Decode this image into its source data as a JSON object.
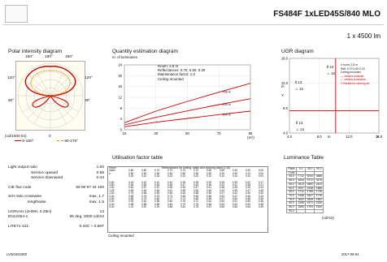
{
  "header": {
    "title": "FS484F 1xLED45S/840 MLO",
    "flux": "1 x 4500 lm"
  },
  "polar": {
    "title": "Polar intensity diagram",
    "angles_top": [
      "150°",
      "180°",
      "150°"
    ],
    "angles_side": [
      "120°",
      "120°",
      "90°",
      "90°"
    ],
    "unit": "(cd/1000 lm)",
    "zero": "0",
    "legend_1": "0-180°",
    "legend_2": "90-270°"
  },
  "quantity": {
    "title": "Quantity estimation diagram",
    "y_label": "nr. of luminaires",
    "room": "Room: 2.8 m",
    "refl": "Reflectances: 0.70, 0.50, 0.20",
    "maint": "Maintenance factor: 1.0",
    "mount": "Ceiling mounted",
    "lines": [
      "750 lx",
      "500 lx",
      "300 lx"
    ],
    "x_unit": "(m²)"
  },
  "ugr": {
    "title": "UGR diagram",
    "axis_y": "Y",
    "axis_x": "X",
    "box_lines": [
      "h room: 2.8 m",
      "Refl: 0.70 0.50 0.20",
      "Ceiling mounted",
      "— viewed endwise",
      "— viewed crosswise",
      "Y  Parallel to viewing dir."
    ],
    "labels": [
      "Ⅱ 16",
      "⊥ 16",
      "Ⅱ 13",
      "⊥ 16",
      "Ⅱ 13",
      "⊥ 13"
    ]
  },
  "lor": {
    "light_output_ratio": "Light output ratio",
    "lor_val": "1.00",
    "up": "Service upward",
    "up_val": "0.56",
    "down": "Service downward",
    "down_val": "0.44",
    "cie": "CIE flux code",
    "cie_val": "59 90 97 44 100",
    "sh": "S/H ratio",
    "cross": "crosswise",
    "cross_val": "max. 1.7",
    "length": "lengthwise",
    "length_val": "max. 1.5",
    "ugr": "UGRcrex (4H/8H, 0.25H)",
    "ugr_val": "14",
    "en": "EN12464-1",
    "en_val": "65 deg. 3000 cd/m2",
    "lite": "LITE71-121:",
    "lite_val": "0.44C + 0.56T"
  },
  "util": {
    "title": "Utilisation factor table",
    "hdr": "Reflectances for ceiling, walls and working plane (CIE)",
    "room_label": "Room",
    "index_label": "index",
    "k_label": "k",
    "refl_rows": [
      [
        "0.80",
        "0.80",
        "0.70",
        "0.70",
        "0.70",
        "0.70",
        "0.50",
        "0.50",
        "0.30",
        "0.30",
        "0.00"
      ],
      [
        "0.50",
        "0.50",
        "0.50",
        "0.50",
        "0.50",
        "0.35",
        "0.50",
        "0.30",
        "0.30",
        "0.10",
        "0.00"
      ],
      [
        "0.30",
        "0.10",
        "0.30",
        "0.20",
        "0.10",
        "0.20",
        "0.10",
        "0.10",
        "0.10",
        "0.10",
        "0.00"
      ]
    ],
    "rows": [
      {
        "k": "0.60",
        "v": [
          "0.44",
          "0.42",
          "0.41",
          "0.40",
          "0.39",
          "0.35",
          "0.29",
          "0.25",
          "0.25",
          "0.22",
          "0.17"
        ]
      },
      {
        "k": "0.80",
        "v": [
          "0.54",
          "0.50",
          "0.50",
          "0.48",
          "0.47",
          "0.43",
          "0.36",
          "0.32",
          "0.31",
          "0.28",
          "0.21"
        ]
      },
      {
        "k": "1.00",
        "v": [
          "0.62",
          "0.57",
          "0.57",
          "0.55",
          "0.53",
          "0.47",
          "0.41",
          "0.38",
          "0.35",
          "0.33",
          "0.24"
        ]
      },
      {
        "k": "1.25",
        "v": [
          "0.69",
          "0.63",
          "0.64",
          "0.61",
          "0.59",
          "0.54",
          "0.46",
          "0.43",
          "0.39",
          "0.37",
          "0.28"
        ]
      },
      {
        "k": "1.50",
        "v": [
          "0.75",
          "0.68",
          "0.69",
          "0.66",
          "0.63",
          "0.58",
          "0.50",
          "0.47",
          "0.42",
          "0.40",
          "0.30"
        ]
      },
      {
        "k": "2.00",
        "v": [
          "0.83",
          "0.75",
          "0.76",
          "0.73",
          "0.69",
          "0.65",
          "0.56",
          "0.53",
          "0.47",
          "0.45",
          "0.33"
        ]
      },
      {
        "k": "2.50",
        "v": [
          "0.89",
          "0.79",
          "0.81",
          "0.77",
          "0.73",
          "0.69",
          "0.59",
          "0.57",
          "0.50",
          "0.48",
          "0.35"
        ]
      },
      {
        "k": "3.00",
        "v": [
          "0.93",
          "0.81",
          "0.85",
          "0.80",
          "0.76",
          "0.72",
          "0.62",
          "0.60",
          "0.51",
          "0.50",
          "0.36"
        ]
      },
      {
        "k": "4.00",
        "v": [
          "0.98",
          "0.85",
          "0.89",
          "0.84",
          "0.79",
          "0.76",
          "0.65",
          "0.63",
          "0.54",
          "0.53",
          "0.38"
        ]
      },
      {
        "k": "5.00",
        "v": [
          "1.01",
          "0.87",
          "0.91",
          "0.86",
          "0.81",
          "0.78",
          "0.67",
          "0.65",
          "0.56",
          "0.54",
          "0.39"
        ]
      }
    ],
    "ceiling": "Ceiling mounted"
  },
  "lum": {
    "title": "Luminance Table",
    "hdr": [
      "Plane",
      "0.0",
      "45.0",
      "90.0"
    ],
    "subhdr": "Cone",
    "rows": [
      [
        "45.0",
        "7712",
        "6234",
        "4688"
      ],
      [
        "50.0",
        "4064",
        "3772",
        "3175"
      ],
      [
        "55.0",
        "2813",
        "2680",
        "2424"
      ],
      [
        "60.0",
        "2097",
        "2248",
        "1868"
      ],
      [
        "65.0",
        "1712",
        "1768",
        "1728"
      ],
      [
        "70.0",
        "1448",
        "1647",
        "1716"
      ],
      [
        "75.0",
        "1842",
        "1609",
        "1502"
      ],
      [
        "80.0",
        "1498",
        "1671",
        "1530"
      ],
      [
        "85.0",
        "1885",
        "1794",
        "1526"
      ],
      [
        "90.0",
        "",
        "",
        ""
      ]
    ],
    "unit": "(cd/m2)"
  },
  "footer": {
    "code": "LVW1931900",
    "date": "2017-09-04"
  },
  "chart_data": [
    {
      "type": "line",
      "title": "Quantity estimation diagram",
      "ylabel": "nr. of luminaires",
      "x": [
        10,
        30,
        50,
        70,
        90
      ],
      "xlim": [
        10,
        90
      ],
      "ylim": [
        0,
        24
      ],
      "x_ticks": [
        "10",
        "30",
        "50",
        "70",
        "90"
      ],
      "y_ticks": [
        "0",
        "4",
        "8",
        "12",
        "16",
        "20",
        "24"
      ],
      "series": [
        {
          "name": "750 lx",
          "values": [
            2.6,
            6.9,
            10.5,
            13.9,
            17.2
          ],
          "color": "#cc0000"
        },
        {
          "name": "500 lx",
          "values": [
            1.8,
            4.6,
            7.0,
            9.3,
            11.5
          ],
          "color": "#cc0000"
        },
        {
          "name": "300 lx",
          "values": [
            1.1,
            2.8,
            4.2,
            5.6,
            6.9
          ],
          "color": "#cc0000"
        }
      ]
    },
    {
      "type": "line",
      "title": "UGR diagram",
      "xlabel": "X",
      "ylabel": "Y",
      "xlim": [
        4.0,
        16.0
      ],
      "ylim": [
        4.0,
        16.0
      ],
      "x_ticks": [
        "4.0",
        "8.0",
        "12.0",
        "16.0"
      ],
      "y_ticks": [
        "4.0",
        "8.0",
        "12.0",
        "16.0"
      ],
      "x_tick_values": [
        4.0,
        8.0,
        12.0,
        16.0
      ],
      "y_tick_values": [
        4.0,
        8.0,
        12.0,
        16.0
      ],
      "x_unit": "m",
      "y_unit": "m",
      "boundaries": [
        {
          "name": "",
          "x": [
            10.2,
            10.2
          ],
          "y": [
            4.0,
            16.0
          ],
          "color": "#cc0000"
        },
        {
          "name": "",
          "x": [
            4.0,
            16.0
          ],
          "y": [
            7.6,
            7.6
          ],
          "color": "#cc0000"
        }
      ]
    }
  ]
}
